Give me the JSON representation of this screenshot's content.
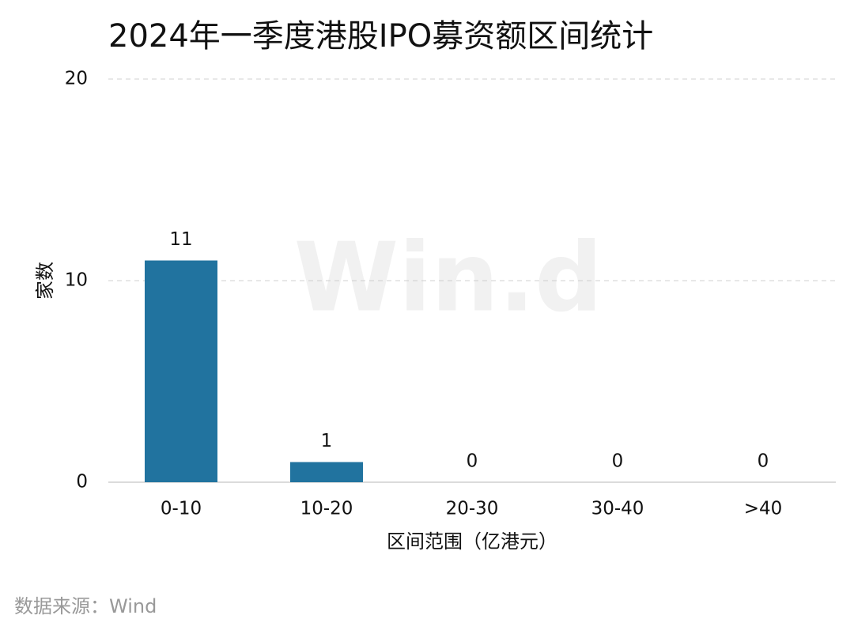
{
  "chart_data": {
    "type": "bar",
    "title": "2024年一季度港股IPO募资额区间统计",
    "y_label": "家数",
    "x_label": "区间范围（亿港元）",
    "source": "数据来源：Wind",
    "watermark": "Win.d",
    "categories": [
      "0-10",
      "10-20",
      "20-30",
      "30-40",
      ">40"
    ],
    "values": [
      11,
      1,
      0,
      0,
      0
    ],
    "color": "#21739f",
    "ylim": [
      0,
      20
    ],
    "yticks": [
      0,
      10,
      20
    ],
    "grid": true
  }
}
